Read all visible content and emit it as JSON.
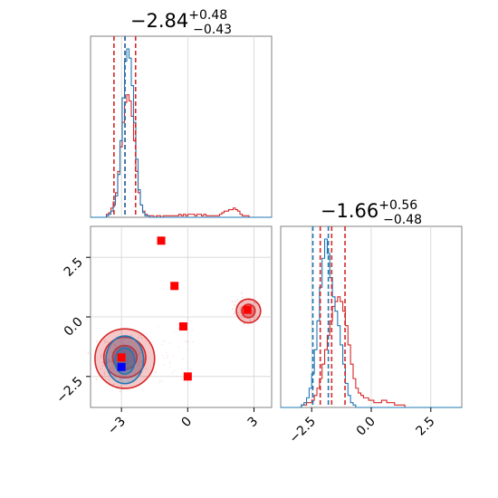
{
  "chart_data": {
    "type": "corner",
    "parameters": [
      {
        "title_main": "−2.84",
        "title_sup": "+0.48",
        "title_sub": "−0.43",
        "axis_range": [
          -4.4,
          3.8
        ],
        "ticks": [
          -3,
          0,
          3
        ],
        "tick_labels": [
          "−3",
          "0",
          "3"
        ]
      },
      {
        "title_main": "−1.66",
        "title_sup": "+0.56",
        "title_sub": "−0.48",
        "axis_range": [
          -3.8,
          3.8
        ],
        "ticks": [
          -2.5,
          0.0,
          2.5
        ],
        "tick_labels": [
          "−2.5",
          "0.0",
          "2.5"
        ]
      }
    ],
    "grid": true,
    "series": [
      {
        "color": "#d62728",
        "quantiles_p1": [
          -3.34,
          -2.84,
          -2.36
        ],
        "quantiles_p2": [
          -2.14,
          -1.66,
          -1.1
        ],
        "hist_p1": {
          "edges": [
            -4.4,
            3.8
          ],
          "values": [
            0,
            0,
            0,
            0,
            0,
            0,
            0,
            2,
            3,
            6,
            10,
            16,
            30,
            46,
            62,
            75,
            80,
            76,
            66,
            50,
            30,
            16,
            8,
            4,
            2,
            1,
            1,
            1,
            0,
            1,
            1,
            0,
            1,
            1,
            1,
            1,
            1,
            1,
            1,
            2,
            1,
            2,
            1,
            2,
            2,
            2,
            1,
            2,
            2,
            1,
            2,
            1,
            1,
            1,
            1,
            1,
            1,
            2,
            3,
            4,
            4,
            5,
            5,
            6,
            5,
            4,
            2,
            1,
            1,
            1,
            0,
            0,
            0,
            0,
            0,
            0,
            0,
            0,
            0,
            0
          ]
        },
        "hist_p2": {
          "edges": [
            -3.8,
            3.8
          ],
          "values": [
            0,
            0,
            0,
            0,
            0,
            0,
            0,
            0,
            1,
            1,
            2,
            2,
            3,
            5,
            8,
            12,
            18,
            24,
            30,
            36,
            42,
            44,
            46,
            44,
            40,
            34,
            26,
            18,
            12,
            8,
            6,
            5,
            4,
            4,
            3,
            3,
            2,
            2,
            2,
            3,
            3,
            2,
            2,
            2,
            1,
            1,
            1,
            1,
            0,
            0,
            0,
            0,
            0,
            0,
            0,
            0,
            0,
            0,
            0,
            0,
            0,
            0,
            0,
            0,
            0,
            0,
            0,
            0,
            0,
            0
          ]
        },
        "markers": [
          {
            "x": -1.2,
            "y": 3.2
          },
          {
            "x": -0.6,
            "y": 1.3
          },
          {
            "x": -0.2,
            "y": -0.4
          },
          {
            "x": 0.0,
            "y": -2.5
          },
          {
            "x": 2.7,
            "y": 0.3
          },
          {
            "x": -3.0,
            "y": -1.7
          }
        ]
      },
      {
        "color": "#1f77b4",
        "quantiles_p1": [
          -2.84
        ],
        "quantiles_p2": [
          -2.45,
          -1.8
        ],
        "hist_p1": {
          "edges": [
            -4.4,
            3.8
          ],
          "values": [
            0,
            0,
            0,
            0,
            0,
            0,
            0,
            1,
            2,
            4,
            8,
            14,
            28,
            50,
            78,
            102,
            110,
            104,
            86,
            62,
            38,
            18,
            8,
            3,
            1,
            1,
            0,
            0,
            0,
            0,
            0,
            0,
            0,
            0,
            0,
            0,
            0,
            0,
            0,
            0,
            0,
            0,
            0,
            0,
            0,
            0,
            0,
            0,
            0,
            0,
            0,
            0,
            0,
            0,
            0,
            0,
            0,
            0,
            0,
            0,
            0,
            0,
            0,
            0,
            0,
            0,
            0,
            0,
            0,
            0,
            0,
            0,
            0,
            0,
            0,
            0,
            0,
            0,
            0,
            0
          ]
        },
        "hist_p2": {
          "edges": [
            -3.8,
            3.8
          ],
          "values": [
            0,
            0,
            0,
            0,
            0,
            0,
            0,
            0,
            1,
            2,
            4,
            8,
            14,
            24,
            36,
            50,
            62,
            70,
            64,
            54,
            46,
            40,
            34,
            26,
            18,
            10,
            5,
            2,
            1,
            0,
            0,
            0,
            0,
            0,
            0,
            0,
            0,
            0,
            0,
            0,
            0,
            0,
            0,
            0,
            0,
            0,
            0,
            0,
            0,
            0,
            0,
            0,
            0,
            0,
            0,
            0,
            0,
            0,
            0,
            0,
            0,
            0,
            0,
            0,
            0,
            0,
            0,
            0,
            0,
            0
          ]
        },
        "markers": [
          {
            "x": -3.0,
            "y": -2.1
          }
        ]
      }
    ]
  }
}
